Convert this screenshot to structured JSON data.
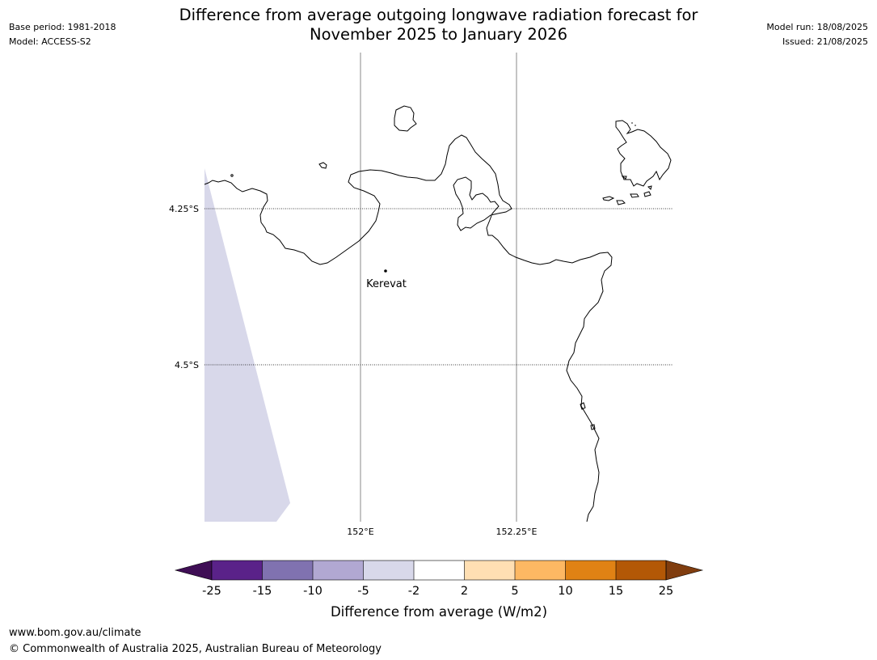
{
  "header": {
    "base_period": "Base period: 1981-2018",
    "model": "Model: ACCESS-S2",
    "model_run": "Model run: 18/08/2025",
    "issued": "Issued: 21/08/2025",
    "title_line1": "Difference from average outgoing longwave radiation forecast for",
    "title_line2": "November 2025 to January 2026"
  },
  "map": {
    "lat_labels": [
      "4.25°S",
      "4.5°S"
    ],
    "lon_labels": [
      "152°E",
      "152.25°E"
    ],
    "place": "Kerevat",
    "land_outline_color": "#000000",
    "shaded_region_category": "-5 to -2",
    "shaded_region_color": "#d8d8ea"
  },
  "colorbar": {
    "label": "Difference from average (W/m2)",
    "ticks": [
      "-25",
      "-15",
      "-10",
      "-5",
      "-2",
      "2",
      "5",
      "10",
      "15",
      "25"
    ],
    "colors": [
      "#3f0e55",
      "#5a2289",
      "#8072b0",
      "#b1a8d2",
      "#d8d8ea",
      "#ffffff",
      "#ffdfb3",
      "#fdb863",
      "#e08214",
      "#b35806",
      "#803d0f"
    ]
  },
  "footer": {
    "url": "www.bom.gov.au/climate",
    "copyright": "© Commonwealth of Australia 2025, Australian Bureau of Meteorology"
  }
}
